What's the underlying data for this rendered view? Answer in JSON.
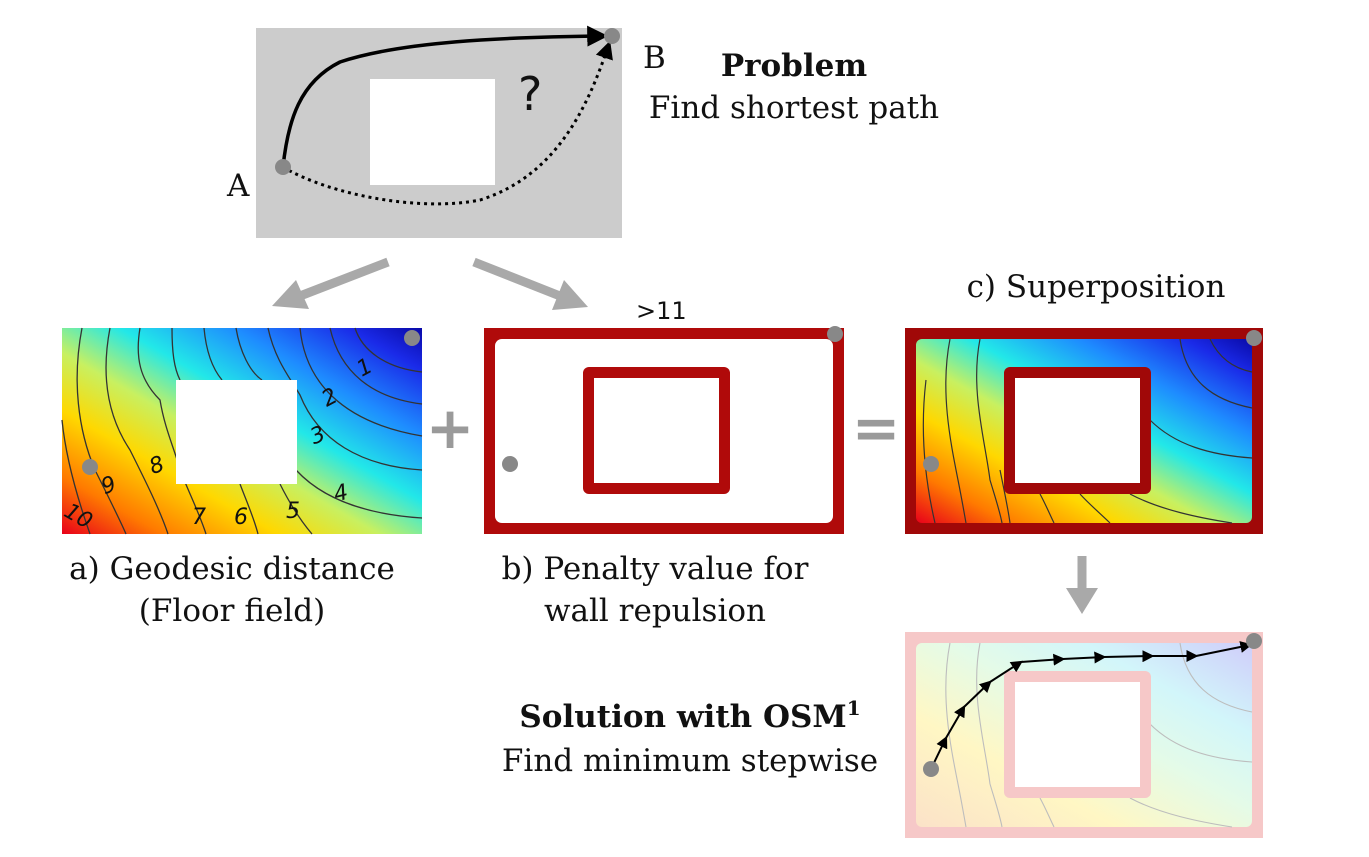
{
  "problem": {
    "label_a": "A",
    "label_b": "B",
    "question_mark": "?",
    "title": "Problem",
    "subtitle": "Find shortest path"
  },
  "panel_a": {
    "caption_line1": "a) Geodesic distance",
    "caption_line2": "(Floor field)",
    "contour_labels": [
      "1",
      "2",
      "3",
      "4",
      "5",
      "6",
      "7",
      "8",
      "9",
      "10"
    ]
  },
  "panel_b": {
    "caption_line1": "b) Penalty value for",
    "caption_line2": "wall repulsion",
    "max_label": ">11"
  },
  "panel_c": {
    "caption": "c) Superposition"
  },
  "operators": {
    "plus": "+",
    "equals": "="
  },
  "solution": {
    "title": "Solution with OSM",
    "superscript": "1",
    "subtitle": "Find minimum stepwise"
  },
  "colors": {
    "problem_bg": "#cccccc",
    "wall_red": "#b00a0a",
    "wall_dark": "#7a0000",
    "arrow_gray": "#a9a9a9",
    "dot_gray": "#888888",
    "pale_wall": "#f6c8c8"
  }
}
